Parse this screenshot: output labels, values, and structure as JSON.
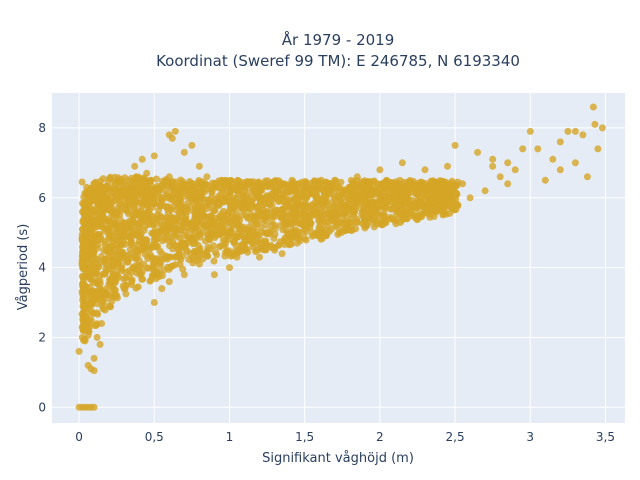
{
  "chart_data": {
    "type": "scatter",
    "title": "År 1979 - 2019",
    "subtitle": "Koordinat (Sweref 99 TM): E 246785, N 6193340",
    "xlabel": "Signifikant våghöjd (m)",
    "ylabel": "Vågperiod (s)",
    "xlim": [
      -0.18,
      3.63
    ],
    "ylim": [
      -0.45,
      9.0
    ],
    "x_ticks": [
      0,
      0.5,
      1,
      1.5,
      2,
      2.5,
      3,
      3.5
    ],
    "x_tick_labels": [
      "0",
      "0,5",
      "1",
      "1,5",
      "2",
      "2,5",
      "3",
      "3,5"
    ],
    "y_ticks": [
      0,
      2,
      4,
      6,
      8
    ],
    "y_tick_labels": [
      "0",
      "2",
      "4",
      "6",
      "8"
    ],
    "grid": true,
    "marker_color": "#d4a526",
    "plot_background": "#e5ecf6",
    "series": [
      {
        "points": [
          [
            0.0,
            0.0
          ],
          [
            0.02,
            0.0
          ],
          [
            0.04,
            0.0
          ],
          [
            0.06,
            0.0
          ],
          [
            0.08,
            0.0
          ],
          [
            0.1,
            0.0
          ],
          [
            0.0,
            1.6
          ],
          [
            0.02,
            6.45
          ],
          [
            0.05,
            6.3
          ],
          [
            0.03,
            2.3
          ],
          [
            0.04,
            1.9
          ],
          [
            0.06,
            1.2
          ],
          [
            0.08,
            1.1
          ],
          [
            0.1,
            1.05
          ],
          [
            0.05,
            2.6
          ],
          [
            0.07,
            3.2
          ],
          [
            0.09,
            4.0
          ],
          [
            0.08,
            4.8
          ],
          [
            0.1,
            5.6
          ],
          [
            0.12,
            5.9
          ],
          [
            0.06,
            5.2
          ],
          [
            0.15,
            2.4
          ],
          [
            0.2,
            2.9
          ],
          [
            0.25,
            3.2
          ],
          [
            0.3,
            3.4
          ],
          [
            0.15,
            5.8
          ],
          [
            0.2,
            5.4
          ],
          [
            0.25,
            6.0
          ],
          [
            0.3,
            6.2
          ],
          [
            0.18,
            4.1
          ],
          [
            0.22,
            4.6
          ],
          [
            0.28,
            5.0
          ],
          [
            0.12,
            3.6
          ],
          [
            0.35,
            3.6
          ],
          [
            0.4,
            4.2
          ],
          [
            0.45,
            4.8
          ],
          [
            0.35,
            6.3
          ],
          [
            0.38,
            6.6
          ],
          [
            0.37,
            6.9
          ],
          [
            0.42,
            7.1
          ],
          [
            0.45,
            6.7
          ],
          [
            0.5,
            3.0
          ],
          [
            0.55,
            3.4
          ],
          [
            0.6,
            3.6
          ],
          [
            0.5,
            7.2
          ],
          [
            0.5,
            5.0
          ],
          [
            0.52,
            5.5
          ],
          [
            0.55,
            4.4
          ],
          [
            0.58,
            6.1
          ],
          [
            0.6,
            6.6
          ],
          [
            0.6,
            7.8
          ],
          [
            0.62,
            7.7
          ],
          [
            0.64,
            7.9
          ],
          [
            0.65,
            4.9
          ],
          [
            0.7,
            3.8
          ],
          [
            0.72,
            5.6
          ],
          [
            0.75,
            6.4
          ],
          [
            0.7,
            7.3
          ],
          [
            0.75,
            7.5
          ],
          [
            0.8,
            6.9
          ],
          [
            0.85,
            6.6
          ],
          [
            0.8,
            4.1
          ],
          [
            0.85,
            5.2
          ],
          [
            0.9,
            3.8
          ],
          [
            0.92,
            5.8
          ],
          [
            0.95,
            6.5
          ],
          [
            0.92,
            6.3
          ],
          [
            1.0,
            4.0
          ],
          [
            1.05,
            4.3
          ],
          [
            1.05,
            5.4
          ],
          [
            1.1,
            6.2
          ],
          [
            1.1,
            4.8
          ],
          [
            1.15,
            5.9
          ],
          [
            1.2,
            4.3
          ],
          [
            1.25,
            5.0
          ],
          [
            1.3,
            6.0
          ],
          [
            1.3,
            4.5
          ],
          [
            1.35,
            5.4
          ],
          [
            1.4,
            6.2
          ],
          [
            1.45,
            4.7
          ],
          [
            1.5,
            5.1
          ],
          [
            1.55,
            5.8
          ],
          [
            1.6,
            6.4
          ],
          [
            1.6,
            4.9
          ],
          [
            1.65,
            5.5
          ],
          [
            1.7,
            6.5
          ],
          [
            1.75,
            5.1
          ],
          [
            1.8,
            5.8
          ],
          [
            1.85,
            6.6
          ],
          [
            1.9,
            5.2
          ],
          [
            1.95,
            5.9
          ],
          [
            2.0,
            6.8
          ],
          [
            2.05,
            5.4
          ],
          [
            2.1,
            6.0
          ],
          [
            2.15,
            7.0
          ],
          [
            2.2,
            5.6
          ],
          [
            2.25,
            6.2
          ],
          [
            2.3,
            6.8
          ],
          [
            2.35,
            5.7
          ],
          [
            2.4,
            6.3
          ],
          [
            2.45,
            6.9
          ],
          [
            2.5,
            7.5
          ],
          [
            2.45,
            5.9
          ],
          [
            2.55,
            6.4
          ],
          [
            2.6,
            6.0
          ],
          [
            2.65,
            7.3
          ],
          [
            2.7,
            6.2
          ],
          [
            2.75,
            7.1
          ],
          [
            2.8,
            6.6
          ],
          [
            2.85,
            7.0
          ],
          [
            2.9,
            6.8
          ],
          [
            2.95,
            7.4
          ],
          [
            3.0,
            7.9
          ],
          [
            3.05,
            7.4
          ],
          [
            3.1,
            6.5
          ],
          [
            3.15,
            7.1
          ],
          [
            3.2,
            7.6
          ],
          [
            3.25,
            7.9
          ],
          [
            3.3,
            7.9
          ],
          [
            3.35,
            7.8
          ],
          [
            3.38,
            6.6
          ],
          [
            3.42,
            8.6
          ],
          [
            3.45,
            7.4
          ],
          [
            3.43,
            8.1
          ],
          [
            3.48,
            8.0
          ],
          [
            3.2,
            6.8
          ],
          [
            3.3,
            7.0
          ],
          [
            2.75,
            6.9
          ],
          [
            2.85,
            6.4
          ],
          [
            2.0,
            6.1
          ],
          [
            2.3,
            6.3
          ],
          [
            1.25,
            6.4
          ],
          [
            1.7,
            6.2
          ],
          [
            1.1,
            5.1
          ],
          [
            1.35,
            4.4
          ],
          [
            1.55,
            4.9
          ],
          [
            0.88,
            6.0
          ],
          [
            0.78,
            5.7
          ],
          [
            0.68,
            6.2
          ],
          [
            0.58,
            5.4
          ],
          [
            0.48,
            6.5
          ],
          [
            0.43,
            5.5
          ],
          [
            0.33,
            4.9
          ],
          [
            0.26,
            4.4
          ],
          [
            0.16,
            3.0
          ],
          [
            0.12,
            2.0
          ],
          [
            0.1,
            1.4
          ],
          [
            0.14,
            1.8
          ],
          [
            0.16,
            6.1
          ]
        ]
      }
    ]
  }
}
